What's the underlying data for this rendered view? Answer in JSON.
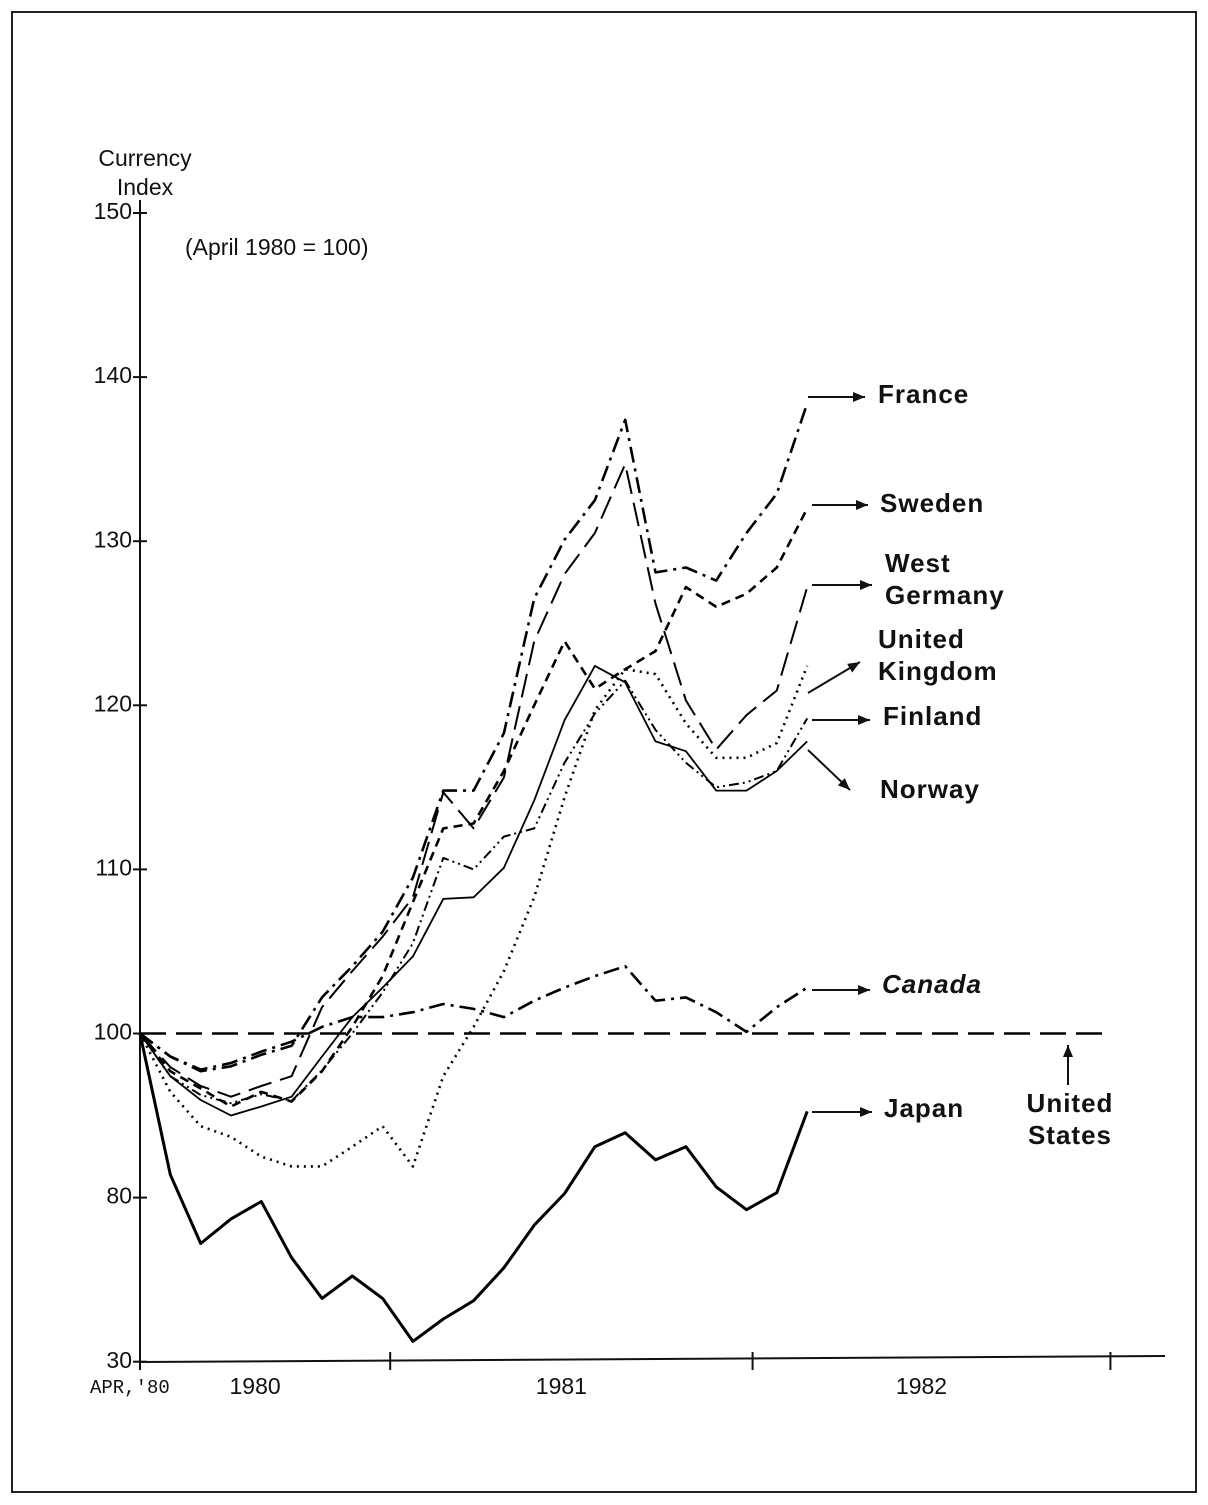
{
  "chart_data": {
    "type": "line",
    "y_label": "Currency Index",
    "subtitle": "(April 1980 = 100)",
    "x": [
      0,
      1,
      2,
      3,
      4,
      5,
      6,
      7,
      8,
      9,
      10,
      11,
      12,
      13,
      14,
      15,
      16,
      17,
      18,
      19,
      20,
      21,
      22
    ],
    "xlim": [
      0,
      33.8
    ],
    "xticks": [
      {
        "value": 0,
        "label": "APR,'80"
      },
      8.25,
      20.2,
      32
    ],
    "year_labels": [
      "1980",
      "1981",
      "1982"
    ],
    "ylim": [
      30,
      150
    ],
    "yticks": [
      150,
      140,
      130,
      120,
      110,
      100,
      80,
      30
    ],
    "series": [
      {
        "name": "France",
        "color": "#000000",
        "style": "dashdot",
        "values": [
          100,
          97.2,
          95.4,
          96,
          97.4,
          98.5,
          102.2,
          104.1,
          106.2,
          109.5,
          114.8,
          114.8,
          118.3,
          126.5,
          130.1,
          132.5,
          137.4,
          128.1,
          128.4,
          127.6,
          130.5,
          132.9,
          138.4
        ]
      },
      {
        "name": "Sweden",
        "color": "#000000",
        "style": "shortdash",
        "values": [
          100,
          95.4,
          93.3,
          91.1,
          92.9,
          91.7,
          95.4,
          100.4,
          103.5,
          108,
          112.5,
          112.8,
          116,
          120,
          123.9,
          121,
          122.2,
          123.3,
          127.2,
          126,
          126.8,
          128.4,
          132
        ]
      },
      {
        "name": "West Germany",
        "color": "#000000",
        "style": "longdash",
        "values": [
          100,
          95.9,
          93.6,
          92.3,
          93.6,
          94.8,
          101.6,
          103.8,
          105.9,
          108.3,
          114.7,
          112.5,
          115.6,
          123.9,
          128,
          130.5,
          134.7,
          126.2,
          120.3,
          117.3,
          119.4,
          120.9,
          127.2
        ]
      },
      {
        "name": "United Kingdom",
        "color": "#000000",
        "style": "dotted",
        "values": [
          100,
          92.9,
          88.7,
          87.4,
          85,
          83.8,
          83.8,
          86.2,
          88.7,
          83.8,
          94.8,
          100.4,
          103.8,
          108.3,
          114.4,
          119.7,
          122.2,
          121.9,
          118.9,
          116.8,
          116.8,
          117.7,
          122.4
        ]
      },
      {
        "name": "Finland",
        "color": "#000000",
        "style": "dashdotdot",
        "values": [
          100,
          94.8,
          92.5,
          91.5,
          92.6,
          91.8,
          95.5,
          100,
          102.5,
          105.5,
          110.7,
          110,
          112,
          112.5,
          116.5,
          119.5,
          121.5,
          118.5,
          116.5,
          115,
          115.3,
          116,
          119.2
        ]
      },
      {
        "name": "Norway",
        "color": "#000000",
        "style": "solid",
        "values": [
          100,
          94.8,
          91.9,
          90,
          91.1,
          92.3,
          97.2,
          101,
          102.8,
          104.7,
          108.2,
          108.3,
          110.1,
          114.2,
          119.1,
          122.4,
          121.4,
          117.8,
          117.2,
          114.8,
          114.8,
          116,
          117.8
        ]
      },
      {
        "name": "Canada",
        "color": "#000000",
        "style": "dashdot",
        "values": [
          100,
          97.2,
          95.6,
          96.4,
          97.8,
          99,
          100.4,
          101,
          101,
          101.3,
          101.8,
          101.5,
          101,
          102,
          102.8,
          103.5,
          104.1,
          102,
          102.2,
          101.3,
          100.1,
          101.6,
          102.8
        ]
      },
      {
        "name": "Japan",
        "color": "#000000",
        "style": "thick",
        "values": [
          100,
          82.8,
          66,
          73.5,
          78.8,
          61.7,
          49.3,
          56.1,
          49.3,
          36.2,
          43,
          48.6,
          58.6,
          71.6,
          80.5,
          86.2,
          87.9,
          84.6,
          86.2,
          81.3,
          76.3,
          80.6,
          90.5
        ]
      },
      {
        "name": "United States",
        "color": "#000000",
        "style": "usdash",
        "x": [
          0,
          32
        ],
        "values": [
          100,
          100
        ]
      }
    ]
  }
}
